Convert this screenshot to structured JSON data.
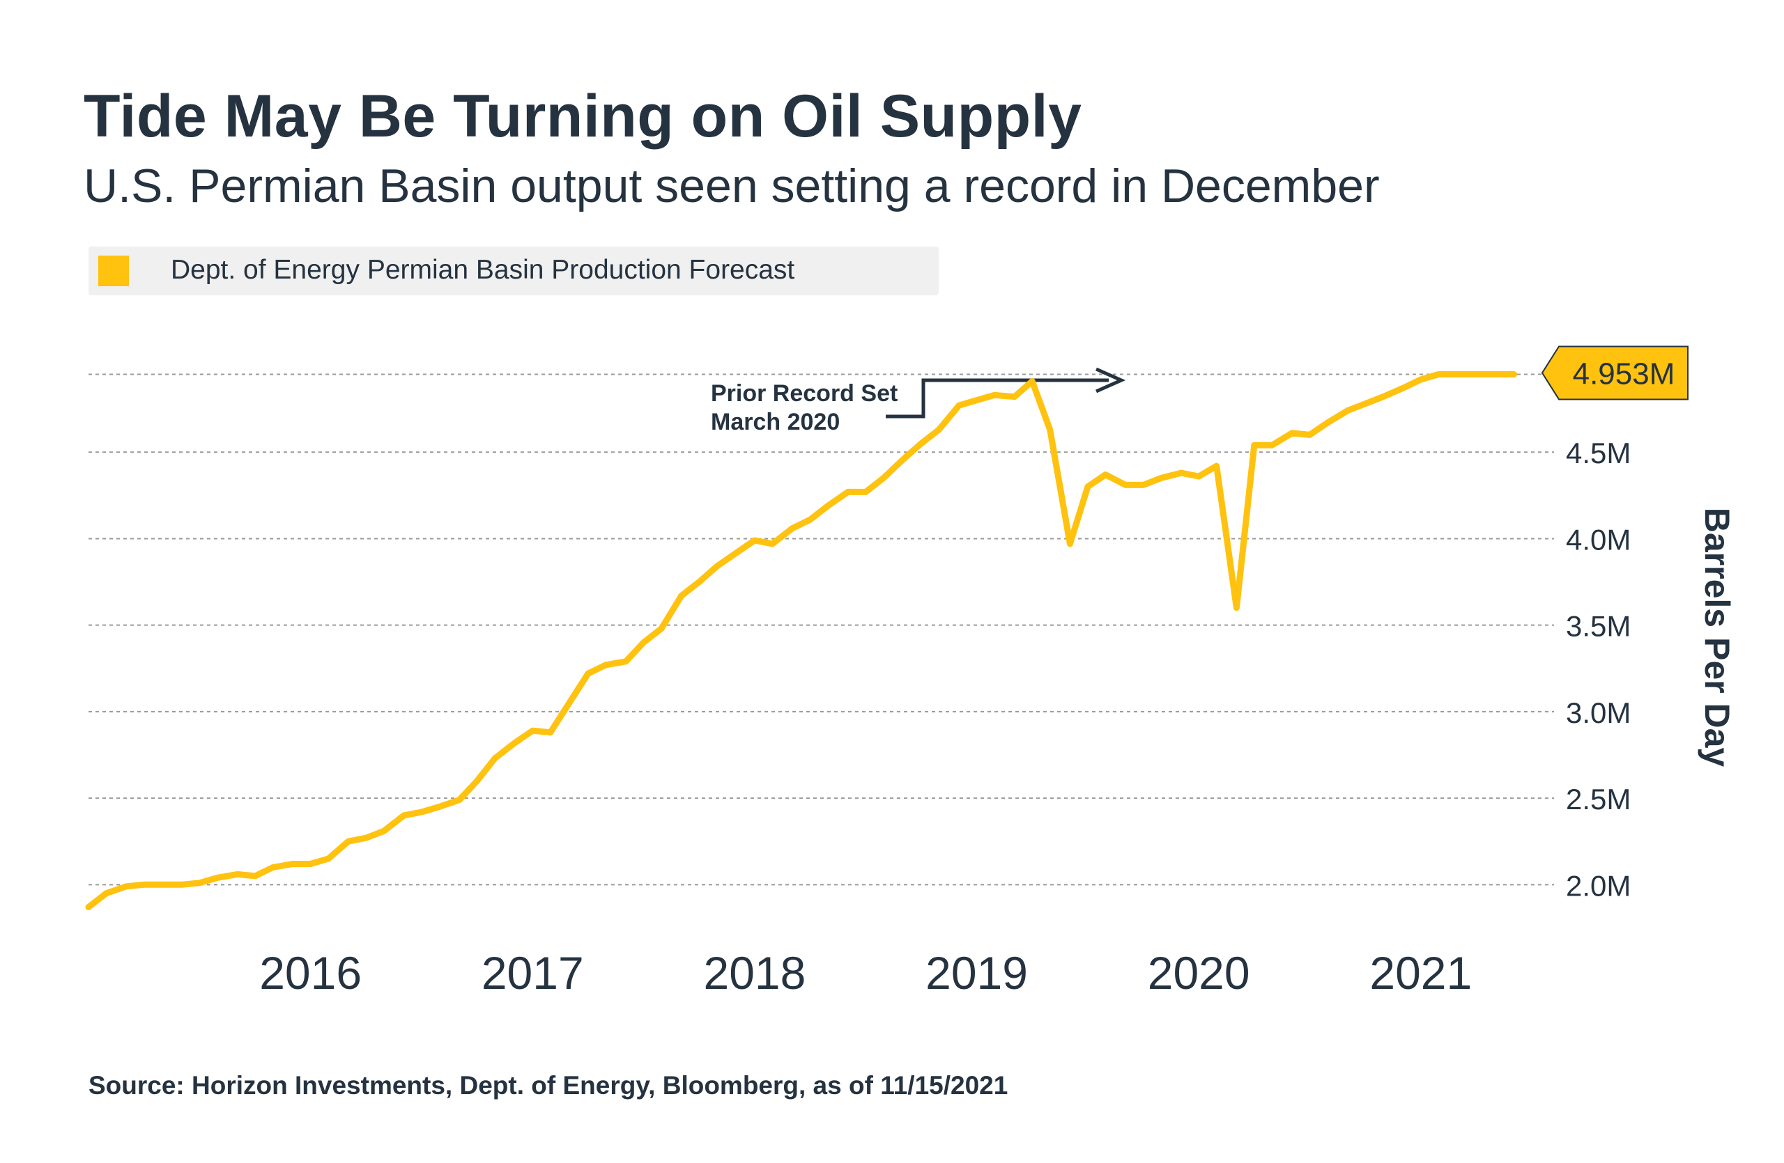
{
  "title": "Tide May Be Turning on Oil Supply",
  "subtitle": "U.S. Permian Basin output seen setting a record in December",
  "source": "Source: Horizon Investments, Dept. of Energy, Bloomberg, as of 11/15/2021",
  "colors": {
    "line": "#FFC20E",
    "text": "#253240",
    "grid": "#9a9a9a",
    "legend_bg": "#f0f0f0"
  },
  "chart_data": {
    "type": "line",
    "title": "Tide May Be Turning on Oil Supply",
    "subtitle": "U.S. Permian Basin output seen setting a record in December",
    "ylabel": "Barrels Per Day",
    "xlabel": "",
    "ylim": [
      1.8,
      4.98
    ],
    "xlim": [
      2015.5,
      2022.1
    ],
    "grid": "horizontal dashed",
    "legend_position": "top-left",
    "y_ticks": [
      2.0,
      2.5,
      3.0,
      3.5,
      4.0,
      4.5
    ],
    "y_tick_labels": [
      "2.0M",
      "2.5M",
      "3.0M",
      "3.5M",
      "4.0M",
      "4.5M"
    ],
    "x_ticks": [
      2016,
      2017,
      2018,
      2019,
      2020,
      2021
    ],
    "x_tick_labels": [
      "2016",
      "2017",
      "2018",
      "2019",
      "2020",
      "2021"
    ],
    "end_label": "4.953M",
    "annotation": {
      "lines": [
        "Prior Record Set",
        "March 2020"
      ],
      "target_x": 2020.17,
      "target_y": 4.91
    },
    "series": [
      {
        "name": "Dept. of Energy Permian Basin Production Forecast",
        "color": "#FFC20E",
        "x": [
          2015.5,
          2015.58,
          2015.67,
          2015.75,
          2015.83,
          2015.92,
          2016.0,
          2016.08,
          2016.17,
          2016.25,
          2016.33,
          2016.42,
          2016.5,
          2016.58,
          2016.67,
          2016.75,
          2016.83,
          2016.92,
          2017.0,
          2017.08,
          2017.17,
          2017.25,
          2017.33,
          2017.42,
          2017.5,
          2017.58,
          2017.67,
          2017.75,
          2017.83,
          2017.92,
          2018.0,
          2018.08,
          2018.17,
          2018.25,
          2018.33,
          2018.42,
          2018.5,
          2018.58,
          2018.67,
          2018.75,
          2018.83,
          2018.92,
          2019.0,
          2019.08,
          2019.17,
          2019.25,
          2019.33,
          2019.42,
          2019.5,
          2019.58,
          2019.67,
          2019.75,
          2019.83,
          2019.92,
          2020.0,
          2020.08,
          2020.17,
          2020.25,
          2020.33,
          2020.42,
          2020.5,
          2020.58,
          2020.67,
          2020.75,
          2020.83,
          2020.92,
          2021.0,
          2021.08,
          2021.17,
          2021.25,
          2021.33,
          2021.42,
          2021.5,
          2021.58,
          2021.67,
          2021.75,
          2021.83,
          2021.92
        ],
        "y": [
          1.87,
          1.95,
          1.99,
          2.0,
          2.0,
          2.0,
          2.01,
          2.04,
          2.06,
          2.05,
          2.1,
          2.12,
          2.12,
          2.15,
          2.25,
          2.27,
          2.31,
          2.4,
          2.42,
          2.45,
          2.49,
          2.6,
          2.73,
          2.82,
          2.89,
          2.88,
          3.06,
          3.22,
          3.27,
          3.29,
          3.4,
          3.48,
          3.67,
          3.75,
          3.84,
          3.92,
          3.99,
          3.97,
          4.06,
          4.11,
          4.19,
          4.27,
          4.27,
          4.35,
          4.46,
          4.55,
          4.63,
          4.77,
          4.8,
          4.83,
          4.82,
          4.91,
          4.63,
          3.97,
          4.3,
          4.37,
          4.31,
          4.31,
          4.35,
          4.38,
          4.36,
          4.42,
          3.6,
          4.54,
          4.54,
          4.61,
          4.6,
          4.67,
          4.74,
          4.78,
          4.82,
          4.87,
          4.92,
          4.95,
          4.95,
          4.95,
          4.95,
          4.95
        ]
      }
    ]
  }
}
